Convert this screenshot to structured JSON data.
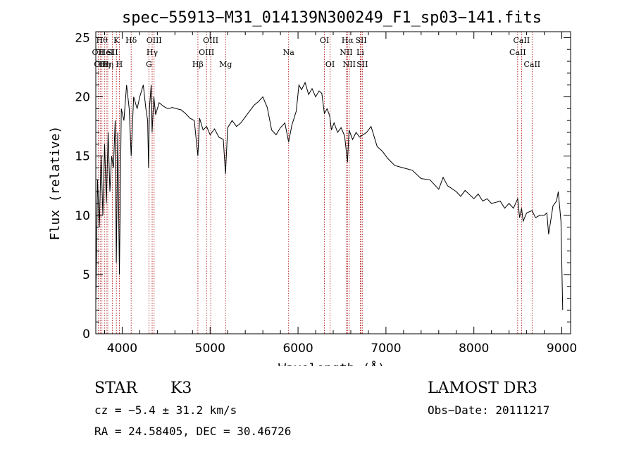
{
  "chart_data": {
    "type": "line",
    "title": "spec−55913−M31_014139N300249_F1_sp03−141.fits",
    "xlabel": "Wavelength (Å)",
    "ylabel": "Flux (relative)",
    "xlim": [
      3700,
      9100
    ],
    "ylim": [
      0,
      25.5
    ],
    "xticks": [
      4000,
      5000,
      6000,
      7000,
      8000,
      9000
    ],
    "xtick_labels": [
      "4000",
      "5000",
      "6000",
      "7000",
      "8000",
      "9000"
    ],
    "yticks": [
      0,
      5,
      10,
      15,
      20,
      25
    ],
    "ytick_labels": [
      "0",
      "5",
      "10",
      "15",
      "20",
      "25"
    ],
    "grid": false,
    "line_color": "#000000",
    "marker_color": "#aa0000",
    "series": [
      {
        "x": [
          3700,
          3720,
          3740,
          3760,
          3780,
          3800,
          3820,
          3840,
          3860,
          3880,
          3900,
          3920,
          3933,
          3950,
          3968,
          3990,
          4020,
          4050,
          4080,
          4102,
          4130,
          4170,
          4200,
          4240,
          4270,
          4290,
          4300,
          4310,
          4330,
          4340,
          4360,
          4380,
          4420,
          4470,
          4520,
          4570,
          4620,
          4670,
          4720,
          4770,
          4820,
          4861,
          4880,
          4920,
          4960,
          5000,
          5050,
          5100,
          5150,
          5175,
          5200,
          5250,
          5300,
          5350,
          5400,
          5450,
          5500,
          5550,
          5600,
          5650,
          5700,
          5750,
          5800,
          5850,
          5893,
          5930,
          5980,
          6010,
          6040,
          6080,
          6120,
          6160,
          6200,
          6240,
          6270,
          6300,
          6330,
          6360,
          6380,
          6410,
          6450,
          6490,
          6530,
          6563,
          6580,
          6620,
          6660,
          6700,
          6740,
          6780,
          6830,
          6900,
          6960,
          7020,
          7100,
          7200,
          7300,
          7400,
          7500,
          7600,
          7650,
          7700,
          7800,
          7850,
          7900,
          8000,
          8050,
          8100,
          8150,
          8200,
          8250,
          8300,
          8350,
          8400,
          8450,
          8498,
          8520,
          8542,
          8560,
          8600,
          8662,
          8700,
          8750,
          8800,
          8830,
          8850,
          8900,
          8940,
          8960,
          8990,
          9010
        ],
        "values": [
          2.5,
          13,
          9,
          15,
          10,
          16,
          11,
          17,
          12,
          15,
          14,
          18,
          6,
          17,
          5,
          19,
          18,
          21,
          19,
          15,
          20,
          19,
          20,
          21,
          19,
          18,
          14,
          19,
          21,
          17,
          20,
          18.5,
          19.5,
          19.2,
          19,
          19.1,
          19,
          18.9,
          18.6,
          18.2,
          18,
          15,
          18.2,
          17.2,
          17.5,
          16.8,
          17.3,
          16.6,
          16.4,
          13.5,
          17.4,
          18,
          17.5,
          17.8,
          18.3,
          18.8,
          19.3,
          19.6,
          20,
          19.1,
          17.2,
          16.8,
          17.4,
          17.8,
          16.2,
          17.6,
          18.8,
          21,
          20.6,
          21.2,
          20.2,
          20.7,
          20,
          20.5,
          20.3,
          18.6,
          19,
          18.4,
          17.2,
          17.8,
          17,
          17.4,
          16.7,
          14.5,
          17.2,
          16.4,
          17,
          16.6,
          16.8,
          17,
          17.5,
          15.8,
          15.4,
          14.8,
          14.2,
          14,
          13.8,
          13.1,
          13,
          12.2,
          13.2,
          12.5,
          12,
          11.6,
          12.1,
          11.4,
          11.8,
          11.2,
          11.4,
          11,
          11.1,
          11.2,
          10.6,
          11,
          10.6,
          11.4,
          9.8,
          10.6,
          9.5,
          10.2,
          10.4,
          9.8,
          10,
          10,
          10.2,
          8.4,
          10.8,
          11.2,
          12,
          9.5,
          2
        ]
      }
    ],
    "lines": [
      {
        "wl": 3727,
        "label": "OII",
        "row": 2
      },
      {
        "wl": 3750,
        "label": "OII",
        "row": 3
      },
      {
        "wl": 3770,
        "label": "Hθ",
        "row": 1
      },
      {
        "wl": 3798,
        "label": "Hη",
        "row": 3
      },
      {
        "wl": 3820,
        "label": "HeI",
        "row": 2
      },
      {
        "wl": 3836,
        "label": "Hη",
        "row": 3
      },
      {
        "wl": 3889,
        "label": "SII",
        "row": 2
      },
      {
        "wl": 3934,
        "label": "K",
        "row": 1
      },
      {
        "wl": 3968,
        "label": "H",
        "row": 3
      },
      {
        "wl": 4102,
        "label": "Hδ",
        "row": 1
      },
      {
        "wl": 4304,
        "label": "G",
        "row": 3
      },
      {
        "wl": 4341,
        "label": "Hγ",
        "row": 2
      },
      {
        "wl": 4363,
        "label": "OIII",
        "row": 1
      },
      {
        "wl": 4861,
        "label": "Hβ",
        "row": 3
      },
      {
        "wl": 4959,
        "label": "OIII",
        "row": 2
      },
      {
        "wl": 5007,
        "label": "OIII",
        "row": 1
      },
      {
        "wl": 5176,
        "label": "Mg",
        "row": 3
      },
      {
        "wl": 5893,
        "label": "Na",
        "row": 2
      },
      {
        "wl": 6300,
        "label": "OI",
        "row": 1
      },
      {
        "wl": 6364,
        "label": "OI",
        "row": 3
      },
      {
        "wl": 6548,
        "label": "NII",
        "row": 2
      },
      {
        "wl": 6563,
        "label": "Hα",
        "row": 1
      },
      {
        "wl": 6583,
        "label": "NII",
        "row": 3
      },
      {
        "wl": 6708,
        "label": "Li",
        "row": 2
      },
      {
        "wl": 6717,
        "label": "SII",
        "row": 1
      },
      {
        "wl": 6731,
        "label": "SII",
        "row": 3
      },
      {
        "wl": 8498,
        "label": "CaII",
        "row": 2
      },
      {
        "wl": 8542,
        "label": "CaII",
        "row": 1
      },
      {
        "wl": 8662,
        "label": "CaII",
        "row": 3
      }
    ]
  },
  "info": {
    "class": "STAR",
    "subclass": "K3",
    "cz": "cz = −5.4 ± 31.2 km/s",
    "coords": "RA =  24.58405, DEC =  30.46726",
    "survey": "LAMOST DR3",
    "obsdate": "Obs−Date: 20111217"
  }
}
